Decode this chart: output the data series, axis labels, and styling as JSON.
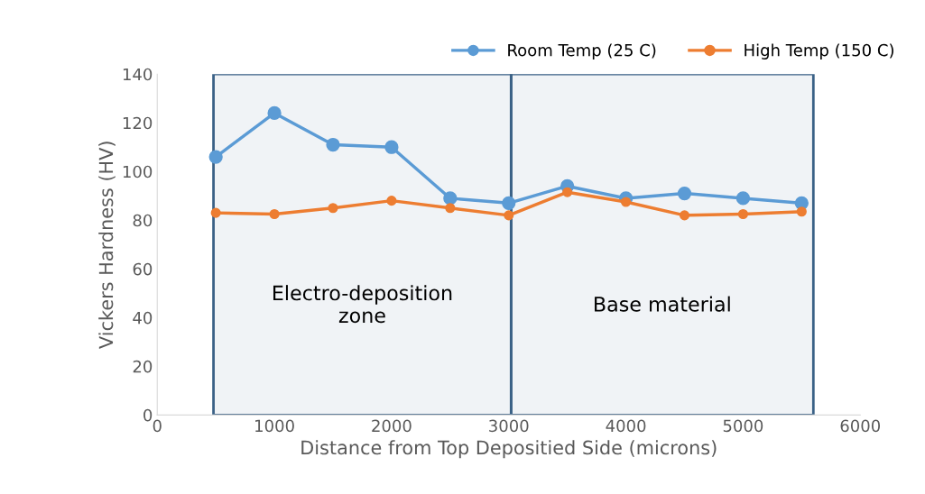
{
  "chart_data": {
    "type": "line",
    "xlabel": "Distance from Top Depositied Side (microns)",
    "ylabel": "Vickers Hardness (HV)",
    "x": [
      500,
      1000,
      1500,
      2000,
      2500,
      3000,
      3500,
      4000,
      4500,
      5000,
      5500
    ],
    "series": [
      {
        "name": "Room Temp (25 C)",
        "color": "#5b9bd5",
        "values": [
          106,
          124,
          111,
          110,
          89,
          87,
          94,
          89,
          91,
          89,
          87
        ]
      },
      {
        "name": "High Temp (150 C)",
        "color": "#ed7d31",
        "values": [
          83,
          82.5,
          85,
          88,
          85,
          82,
          91.5,
          87.5,
          82,
          82.5,
          83.5
        ]
      }
    ],
    "xlim": [
      0,
      6000
    ],
    "xticks": [
      0,
      1000,
      2000,
      3000,
      4000,
      5000,
      6000
    ],
    "ylim": [
      0,
      140
    ],
    "yticks": [
      0,
      20,
      40,
      60,
      80,
      100,
      120,
      140
    ],
    "bands": [
      {
        "axis": "x",
        "from": 480,
        "to": 3020,
        "label": "Electro-deposition\nzone",
        "color": "#3a6186"
      },
      {
        "axis": "x",
        "from": 3020,
        "to": 5600,
        "label": "Base material",
        "color": "#3a6186"
      }
    ],
    "marker": "circle",
    "line_style": "solid",
    "grid": false,
    "legend": "top right"
  }
}
